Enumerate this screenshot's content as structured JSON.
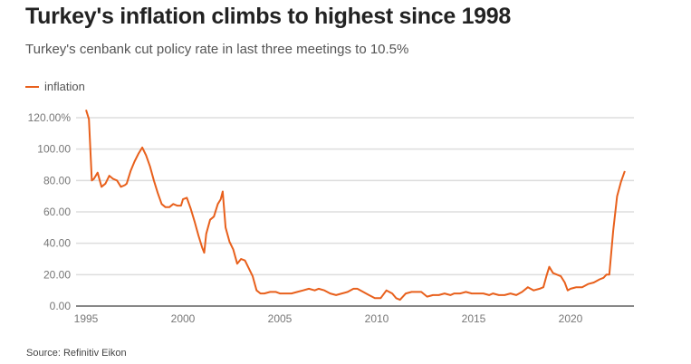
{
  "header": {
    "title": "Turkey's inflation climbs to highest since 1998",
    "subtitle": "Turkey's cenbank cut policy rate in last three meetings to 10.5%"
  },
  "footer": {
    "source": "Source: Refinitiv Eikon"
  },
  "chart_data": {
    "type": "line",
    "title": "Turkey's inflation climbs to highest since 1998",
    "subtitle": "Turkey's cenbank cut policy rate in last three meetings to 10.5%",
    "xlabel": "",
    "ylabel": "",
    "xlim": [
      1995,
      2023
    ],
    "ylim": [
      0,
      120
    ],
    "grid": true,
    "legend_position": "top-left",
    "x_ticks": [
      "1995",
      "2000",
      "2005",
      "2010",
      "2015",
      "2020"
    ],
    "x_tick_values": [
      1995,
      2000,
      2005,
      2010,
      2015,
      2020
    ],
    "y_ticks": [
      "0.00",
      "20.00",
      "40.00",
      "60.00",
      "80.00",
      "100.00",
      "120.00%"
    ],
    "y_tick_values": [
      0,
      20,
      40,
      60,
      80,
      100,
      120
    ],
    "series": [
      {
        "name": "inflation",
        "color": "#e8601c",
        "x": [
          1995.0,
          1995.15,
          1995.3,
          1995.4,
          1995.6,
          1995.8,
          1996.0,
          1996.2,
          1996.4,
          1996.6,
          1996.8,
          1997.0,
          1997.1,
          1997.3,
          1997.5,
          1997.7,
          1997.9,
          1998.1,
          1998.3,
          1998.5,
          1998.7,
          1998.9,
          1999.1,
          1999.3,
          1999.5,
          1999.7,
          1999.9,
          2000.0,
          2000.2,
          2000.4,
          2000.6,
          2000.8,
          2001.0,
          2001.1,
          2001.2,
          2001.4,
          2001.6,
          2001.8,
          2001.95,
          2002.05,
          2002.2,
          2002.4,
          2002.6,
          2002.8,
          2003.0,
          2003.2,
          2003.4,
          2003.6,
          2003.8,
          2004.0,
          2004.2,
          2004.5,
          2004.8,
          2005.0,
          2005.3,
          2005.6,
          2005.9,
          2006.2,
          2006.5,
          2006.8,
          2007.0,
          2007.3,
          2007.6,
          2007.9,
          2008.2,
          2008.5,
          2008.8,
          2009.0,
          2009.3,
          2009.6,
          2009.9,
          2010.2,
          2010.5,
          2010.8,
          2011.0,
          2011.2,
          2011.5,
          2011.8,
          2012.0,
          2012.3,
          2012.6,
          2012.9,
          2013.2,
          2013.5,
          2013.8,
          2014.0,
          2014.3,
          2014.6,
          2014.9,
          2015.2,
          2015.5,
          2015.8,
          2016.0,
          2016.3,
          2016.6,
          2016.9,
          2017.2,
          2017.5,
          2017.8,
          2018.1,
          2018.4,
          2018.6,
          2018.75,
          2018.9,
          2019.1,
          2019.3,
          2019.5,
          2019.7,
          2019.85,
          2020.0,
          2020.3,
          2020.6,
          2020.9,
          2021.2,
          2021.5,
          2021.7,
          2021.85,
          2022.0,
          2022.2,
          2022.4,
          2022.6,
          2022.8
        ],
        "values": [
          125,
          119,
          80,
          81,
          85,
          76,
          78,
          83,
          81,
          80,
          76,
          77,
          78,
          86,
          92,
          97,
          101,
          96,
          89,
          80,
          72,
          65,
          63,
          63,
          65,
          64,
          64,
          68,
          69,
          62,
          54,
          45,
          37,
          34,
          46,
          55,
          57,
          65,
          68,
          73,
          50,
          41,
          36,
          27,
          30,
          29,
          24,
          19,
          10,
          8,
          8,
          9,
          9,
          8,
          8,
          8,
          9,
          10,
          11,
          10,
          11,
          10,
          8,
          7,
          8,
          9,
          11,
          11,
          9,
          7,
          5,
          5,
          10,
          8,
          5,
          4,
          8,
          9,
          9,
          9,
          6,
          7,
          7,
          8,
          7,
          8,
          8,
          9,
          8,
          8,
          8,
          7,
          8,
          7,
          7,
          8,
          7,
          9,
          12,
          10,
          11,
          12,
          19,
          25,
          21,
          20,
          19,
          15,
          10,
          11,
          12,
          12,
          14,
          15,
          17,
          18,
          20,
          20,
          48,
          70,
          79,
          86
        ]
      }
    ]
  }
}
